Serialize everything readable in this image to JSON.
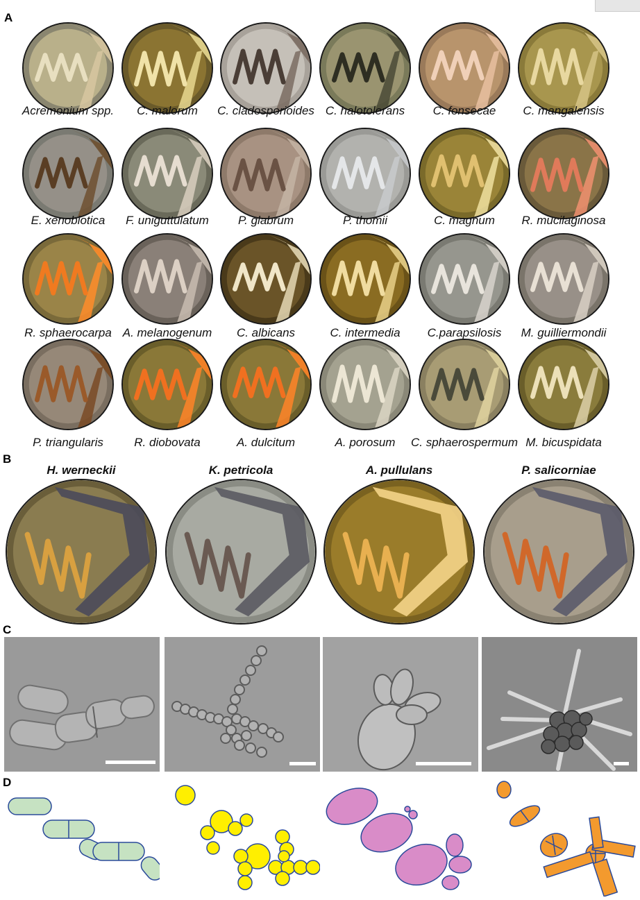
{
  "panels": {
    "a": "A",
    "b": "B",
    "c": "C",
    "d": "D"
  },
  "plates": [
    {
      "label": "Acremonium spp.",
      "bg": "#8a8670",
      "agar": "#b9b08a",
      "colony": "#e8dfc0",
      "edge": "#d7c7a0"
    },
    {
      "label": "C. malorum",
      "bg": "#6a5a2a",
      "agar": "#8b7432",
      "colony": "#f0e2a8",
      "edge": "#e8d890"
    },
    {
      "label": "C. cladosporioides",
      "bg": "#a8a29a",
      "agar": "#c5c0b8",
      "colony": "#4a3e36",
      "edge": "#7a6c62"
    },
    {
      "label": "C. halotolerans",
      "bg": "#7a7a5a",
      "agar": "#9a9470",
      "colony": "#2e2e22",
      "edge": "#4a4a36"
    },
    {
      "label": "C. fonsecae",
      "bg": "#9a7a5a",
      "agar": "#b8946c",
      "colony": "#f0d0b8",
      "edge": "#e8c0a0"
    },
    {
      "label": "C. mangalensis",
      "bg": "#8a7a3a",
      "agar": "#a8964e",
      "colony": "#e8d8a0",
      "edge": "#d6c486"
    },
    {
      "label": "E. xenobiotica",
      "bg": "#7a7a72",
      "agar": "#959088",
      "colony": "#5a3e24",
      "edge": "#6e5030"
    },
    {
      "label": "F. uniguttulatum",
      "bg": "#6a6a5a",
      "agar": "#8a8a78",
      "colony": "#e6ddd0",
      "edge": "#d8cebe"
    },
    {
      "label": "P. glabrum",
      "bg": "#8e7a6a",
      "agar": "#a89282",
      "colony": "#6a5244",
      "edge": "#c4b4a4"
    },
    {
      "label": "P. thomii",
      "bg": "#9a9a96",
      "agar": "#b2b2ae",
      "colony": "#e4e6e8",
      "edge": "#c8cacc"
    },
    {
      "label": "C. magnum",
      "bg": "#7a6a2a",
      "agar": "#9a8438",
      "colony": "#e0c070",
      "edge": "#f0e0a0"
    },
    {
      "label": "R. mucilaginosa",
      "bg": "#6a5a3a",
      "agar": "#8a7448",
      "colony": "#e07a5a",
      "edge": "#f09070"
    },
    {
      "label": "R. sphaerocarpa",
      "bg": "#7a6a3a",
      "agar": "#9a8448",
      "colony": "#f07a20",
      "edge": "#ff8c2a"
    },
    {
      "label": "A. melanogenum",
      "bg": "#6a625a",
      "agar": "#8a8078",
      "colony": "#dcd0c4",
      "edge": "#c8bcb0"
    },
    {
      "label": "C. albicans",
      "bg": "#4a3a1a",
      "agar": "#6a5428",
      "colony": "#f0e6c8",
      "edge": "#e4d8b4"
    },
    {
      "label": "C. intermedia",
      "bg": "#6a5218",
      "agar": "#8a6c22",
      "colony": "#f0dca0",
      "edge": "#e8d088"
    },
    {
      "label": "C.parapsilosis",
      "bg": "#7a7a72",
      "agar": "#96968e",
      "colony": "#e8e4dc",
      "edge": "#d8d4cc"
    },
    {
      "label": "M. guilliermondii",
      "bg": "#7a746a",
      "agar": "#989088",
      "colony": "#e8e0d4",
      "edge": "#d8d0c4"
    },
    {
      "label": "P. triangularis",
      "bg": "#7a6e60",
      "agar": "#968878",
      "colony": "#9a5a2a",
      "edge": "#7a4a24"
    },
    {
      "label": "R. diobovata",
      "bg": "#6a5e2a",
      "agar": "#8a7838",
      "colony": "#f07020",
      "edge": "#ff8428"
    },
    {
      "label": "A. dulcitum",
      "bg": "#6a5e2a",
      "agar": "#8a7838",
      "colony": "#f07020",
      "edge": "#ff8428"
    },
    {
      "label": "A. porosum",
      "bg": "#8a8878",
      "agar": "#a4a290",
      "colony": "#ece6d4",
      "edge": "#dcd6c4"
    },
    {
      "label": "C. sphaerospermum",
      "bg": "#8a8060",
      "agar": "#a89c74",
      "colony": "#4a4a3a",
      "edge": "#e0d4a0"
    },
    {
      "label": "M. bicuspidata",
      "bg": "#6a5e2a",
      "agar": "#8a7c3c",
      "colony": "#ece0b8",
      "edge": "#dcd0a8"
    }
  ],
  "big_plates": [
    {
      "title": "H. werneckii",
      "bg": "#6a5e3a",
      "agar": "#8a7c50",
      "colony": "#d8a040",
      "streak": "#4a4a5a"
    },
    {
      "title": "K. petricola",
      "bg": "#8a8c84",
      "agar": "#a8aaa2",
      "colony": "#6a5a52",
      "streak": "#5a5a62"
    },
    {
      "title": "A. pullulans",
      "bg": "#7a6220",
      "agar": "#9a7c2a",
      "colony": "#e8b050",
      "streak": "#f4d488"
    },
    {
      "title": "P. salicorniae",
      "bg": "#8a8272",
      "agar": "#a89e8c",
      "colony": "#d0682a",
      "streak": "#5a5a6a"
    }
  ],
  "micrographs": [
    {
      "name": "H. werneckii cells",
      "bg": "#9a9a9a"
    },
    {
      "name": "K. petricola cells",
      "bg": "#9c9c9c"
    },
    {
      "name": "A. pullulans cells",
      "bg": "#a2a2a2"
    },
    {
      "name": "P. salicorniae cells",
      "bg": "#8a8a8a"
    }
  ],
  "colors": {
    "schematic_green": "#c6e2c2",
    "schematic_yellow": "#ffef00",
    "schematic_pink": "#d98cc8",
    "schematic_orange": "#f39a2e",
    "outline": "#2a4a9a"
  }
}
